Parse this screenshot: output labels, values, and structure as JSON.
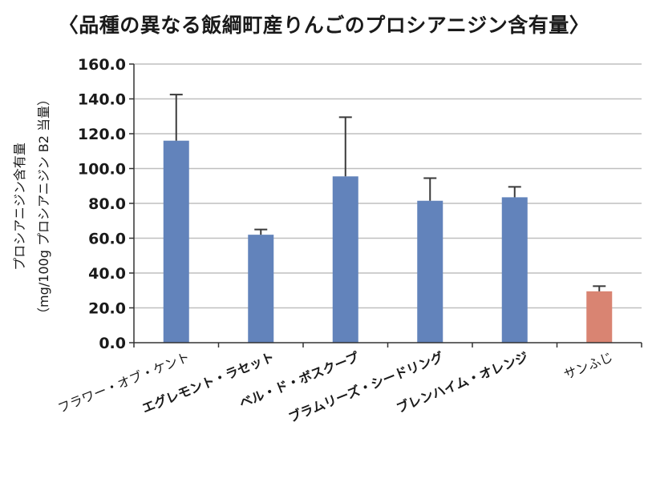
{
  "chart_data": {
    "type": "bar",
    "title": "〈品種の異なる飯綱町産りんごのプロシアニジン含有量〉",
    "ylabel": "プロシアニジン含有量",
    "ylabel_sub": "（mg/100g プロシアニジン B2 当量）",
    "xlabel": "",
    "ylim": [
      0,
      160
    ],
    "y_ticks": [
      "0.0",
      "20.0",
      "40.0",
      "60.0",
      "80.0",
      "100.0",
      "120.0",
      "140.0",
      "160.0"
    ],
    "y_tick_values": [
      0,
      20,
      40,
      60,
      80,
      100,
      120,
      140,
      160
    ],
    "categories": [
      "フラワー・オブ・ケント",
      "エグレモント・ラセット",
      "ベル・ド・ボスクープ",
      "ブラムリーズ・シードリング",
      "ブレンハイム・オレンジ",
      "サンふじ"
    ],
    "bold_categories": [
      false,
      true,
      true,
      true,
      true,
      false
    ],
    "values": [
      116,
      62,
      95.5,
      81.5,
      83.5,
      29.5
    ],
    "error_upper": [
      142.5,
      65,
      129.5,
      94.5,
      89.5,
      32.5
    ],
    "bar_colors": [
      "#6283bb",
      "#6283bb",
      "#6283bb",
      "#6283bb",
      "#6283bb",
      "#d98472"
    ],
    "grid": true
  }
}
